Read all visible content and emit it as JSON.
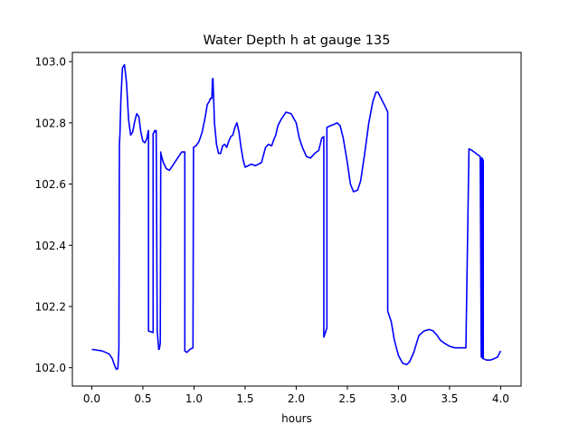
{
  "chart_data": {
    "type": "line",
    "title": "Water Depth h at gauge 135",
    "xlabel": "hours",
    "ylabel": "",
    "xlim": [
      -0.19,
      4.2
    ],
    "ylim": [
      101.94,
      103.03
    ],
    "grid": false,
    "x_ticks": [
      0.0,
      0.5,
      1.0,
      1.5,
      2.0,
      2.5,
      3.0,
      3.5,
      4.0
    ],
    "x_tick_labels": [
      "0.0",
      "0.5",
      "1.0",
      "1.5",
      "2.0",
      "2.5",
      "3.0",
      "3.5",
      "4.0"
    ],
    "y_ticks": [
      102.0,
      102.2,
      102.4,
      102.6,
      102.8,
      103.0
    ],
    "y_tick_labels": [
      "102.0",
      "102.2",
      "102.4",
      "102.6",
      "102.8",
      "103.0"
    ],
    "series": [
      {
        "color": "#0000ff",
        "x": [
          0.0,
          0.1,
          0.17,
          0.2,
          0.22,
          0.24,
          0.255,
          0.265,
          0.27,
          0.275,
          0.285,
          0.3,
          0.32,
          0.34,
          0.36,
          0.38,
          0.4,
          0.42,
          0.44,
          0.46,
          0.48,
          0.5,
          0.52,
          0.54,
          0.55,
          0.555,
          0.555,
          0.6,
          0.6,
          0.61,
          0.615,
          0.62,
          0.63,
          0.64,
          0.64,
          0.65,
          0.655,
          0.66,
          0.67,
          0.675,
          0.675,
          0.7,
          0.73,
          0.76,
          0.8,
          0.84,
          0.88,
          0.9,
          0.91,
          0.91,
          0.93,
          0.96,
          0.99,
          0.995,
          0.995,
          1.02,
          1.05,
          1.08,
          1.11,
          1.13,
          1.15,
          1.16,
          1.175,
          1.18,
          1.185,
          1.19,
          1.2,
          1.22,
          1.24,
          1.26,
          1.28,
          1.3,
          1.32,
          1.34,
          1.36,
          1.38,
          1.4,
          1.42,
          1.44,
          1.46,
          1.48,
          1.5,
          1.53,
          1.56,
          1.6,
          1.63,
          1.66,
          1.7,
          1.73,
          1.76,
          1.78,
          1.8,
          1.82,
          1.85,
          1.9,
          1.95,
          2.0,
          2.03,
          2.06,
          2.1,
          2.14,
          2.18,
          2.22,
          2.25,
          2.27,
          2.27,
          2.29,
          2.3,
          2.3,
          2.33,
          2.37,
          2.4,
          2.43,
          2.46,
          2.5,
          2.53,
          2.56,
          2.6,
          2.63,
          2.67,
          2.71,
          2.75,
          2.78,
          2.8,
          2.83,
          2.86,
          2.89,
          2.895,
          2.895,
          2.9,
          2.93,
          2.96,
          3.0,
          3.04,
          3.08,
          3.11,
          3.15,
          3.2,
          3.25,
          3.3,
          3.34,
          3.38,
          3.41,
          3.45,
          3.5,
          3.55,
          3.6,
          3.66,
          3.69,
          3.69,
          3.72,
          3.76,
          3.8,
          3.81,
          3.81,
          3.815,
          3.82,
          3.82,
          3.823,
          3.826,
          3.83,
          3.83,
          3.86,
          3.9,
          3.94,
          3.97,
          4.0
        ],
        "y": [
          102.06,
          102.055,
          102.045,
          102.03,
          102.01,
          101.995,
          101.997,
          102.06,
          102.73,
          102.76,
          102.88,
          102.98,
          102.99,
          102.93,
          102.81,
          102.76,
          102.77,
          102.805,
          102.83,
          102.82,
          102.77,
          102.74,
          102.735,
          102.75,
          102.77,
          102.775,
          102.12,
          102.115,
          102.765,
          102.77,
          102.775,
          102.77,
          102.775,
          102.12,
          102.12,
          102.08,
          102.06,
          102.06,
          102.08,
          102.705,
          102.7,
          102.67,
          102.65,
          102.645,
          102.665,
          102.685,
          102.705,
          102.705,
          102.705,
          102.055,
          102.05,
          102.06,
          102.065,
          102.72,
          102.72,
          102.725,
          102.74,
          102.77,
          102.82,
          102.86,
          102.87,
          102.88,
          102.88,
          102.94,
          102.945,
          102.9,
          102.8,
          102.73,
          102.7,
          102.7,
          102.725,
          102.73,
          102.72,
          102.74,
          102.755,
          102.76,
          102.785,
          102.8,
          102.77,
          102.72,
          102.68,
          102.655,
          102.66,
          102.665,
          102.66,
          102.665,
          102.67,
          102.72,
          102.73,
          102.725,
          102.745,
          102.76,
          102.79,
          102.81,
          102.835,
          102.83,
          102.8,
          102.75,
          102.72,
          102.69,
          102.685,
          102.7,
          102.71,
          102.75,
          102.755,
          102.1,
          102.12,
          102.13,
          102.785,
          102.79,
          102.795,
          102.8,
          102.79,
          102.75,
          102.67,
          102.6,
          102.575,
          102.58,
          102.61,
          102.7,
          102.8,
          102.87,
          102.9,
          102.9,
          102.88,
          102.86,
          102.84,
          102.835,
          102.185,
          102.18,
          102.15,
          102.09,
          102.04,
          102.015,
          102.01,
          102.02,
          102.05,
          102.105,
          102.12,
          102.125,
          102.12,
          102.105,
          102.09,
          102.08,
          102.07,
          102.065,
          102.065,
          102.065,
          102.715,
          102.715,
          102.71,
          102.7,
          102.69,
          102.04,
          102.035,
          102.685,
          102.685,
          102.04,
          102.03,
          102.68,
          102.675,
          102.03,
          102.025,
          102.025,
          102.03,
          102.035,
          102.055
        ]
      }
    ]
  }
}
